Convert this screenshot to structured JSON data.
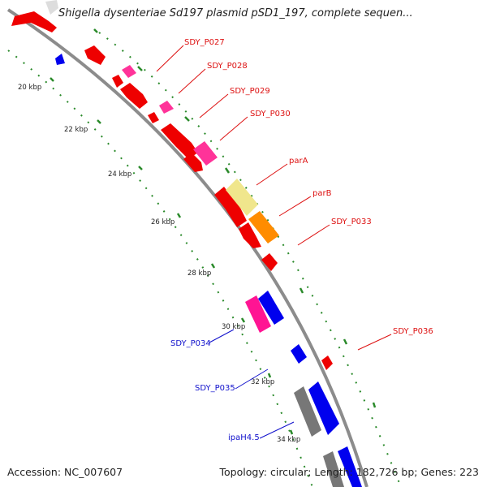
{
  "title": "Shigella dysenteriae Sd197 plasmid pSD1_197, complete sequen...",
  "footer": {
    "accession": "Accession: NC_007607",
    "summary": "Topology: circular; Length: 182,726 bp; Genes: 223"
  },
  "colors": {
    "backbone": "#8c8c8c",
    "tick_dots": "#2a8a2a",
    "forward_label": "#dd1111",
    "reverse_label": "#1111cc",
    "cds_red": "#ee0000",
    "cds_pink": "#ff1493",
    "cds_blue": "#0000ee",
    "cds_gray": "#666666",
    "cds_yellow": "#f0e68c",
    "cds_orange": "#ff8c00"
  },
  "ticks": [
    "20 kbp",
    "22 kbp",
    "24 kbp",
    "26 kbp",
    "28 kbp",
    "30 kbp",
    "32 kbp",
    "34 kbp"
  ],
  "labels": [
    {
      "text": "SDY_P027",
      "strand": "forward"
    },
    {
      "text": "SDY_P028",
      "strand": "forward"
    },
    {
      "text": "SDY_P029",
      "strand": "forward"
    },
    {
      "text": "SDY_P030",
      "strand": "forward"
    },
    {
      "text": "parA",
      "strand": "forward"
    },
    {
      "text": "parB",
      "strand": "forward"
    },
    {
      "text": "SDY_P033",
      "strand": "forward"
    },
    {
      "text": "SDY_P036",
      "strand": "forward"
    },
    {
      "text": "SDY_P034",
      "strand": "reverse"
    },
    {
      "text": "SDY_P035",
      "strand": "reverse"
    },
    {
      "text": "ipaH4.5",
      "strand": "reverse"
    }
  ]
}
